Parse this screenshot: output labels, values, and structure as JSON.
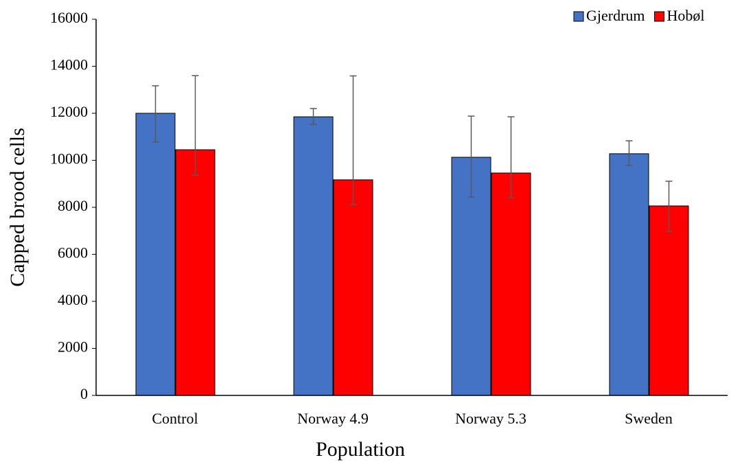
{
  "chart_data": {
    "type": "bar",
    "x_label": "Population",
    "y_label": "Capped brood cells",
    "categories": [
      "Control",
      "Norway 4.9",
      "Norway 5.3",
      "Sweden"
    ],
    "series": [
      {
        "name": "Gjerdrum",
        "color": "#4472c4",
        "values": [
          12000,
          11850,
          10130,
          10280
        ],
        "error_plus": [
          1170,
          350,
          1750,
          550
        ],
        "error_minus": [
          1220,
          320,
          1700,
          500
        ]
      },
      {
        "name": "Hobøl",
        "color": "#ff0000",
        "values": [
          10450,
          9170,
          9460,
          8060
        ],
        "error_plus": [
          3150,
          4420,
          2390,
          1050
        ],
        "error_minus": [
          1080,
          1050,
          1050,
          1080
        ]
      }
    ],
    "ylim": [
      0,
      16000
    ],
    "yticks": [
      0,
      2000,
      4000,
      6000,
      8000,
      10000,
      12000,
      14000,
      16000
    ],
    "grid": false,
    "legend": "top-right"
  }
}
